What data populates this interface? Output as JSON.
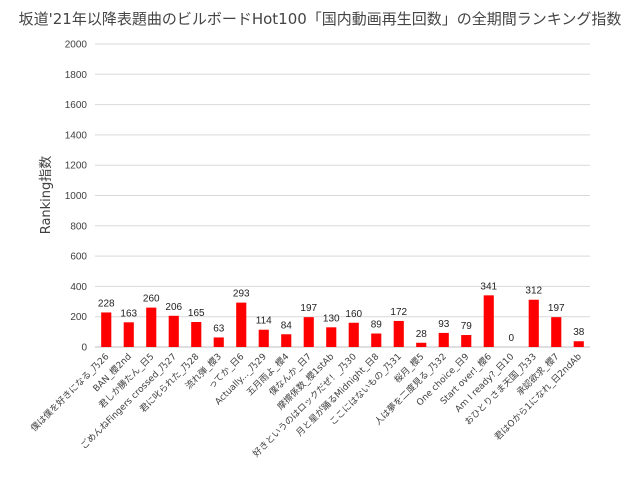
{
  "chart_data": {
    "type": "bar",
    "title": "坂道'21年以降表題曲のビルボードHot100「国内動画再生回数」の全期間ランキング指数",
    "ylabel": "Ranking指数",
    "xlabel": "",
    "ylim": [
      0,
      2000
    ],
    "yticks": [
      0,
      200,
      400,
      600,
      800,
      1000,
      1200,
      1400,
      1600,
      1800,
      2000
    ],
    "grid": true,
    "legend": "none",
    "bar_color": "#ff0000",
    "categories": [
      "僕は僕を好きになる_乃26",
      "BAN_櫻2nd",
      "君しか勝たん_日5",
      "ごめんねFingers crossed_乃27",
      "君に叱られた_乃28",
      "流れ弾_櫻3",
      "ってか_日6",
      "Actually..._乃29",
      "五月雨よ_櫻4",
      "僕なんか_日7",
      "摩擦係数_櫻1stAb",
      "好きというのはロックだぜ！_乃30",
      "月と星が踊るMidnight_日8",
      "ここにはないもの_乃31",
      "桜月_櫻5",
      "人は夢を二度見る_乃32",
      "One choice_日9",
      "Start over!_櫻6",
      "Am I ready?_日10",
      "おひとりさま天国_乃33",
      "承認欲求_櫻7",
      "君はOから1になれ_日2ndAb"
    ],
    "values": [
      228,
      163,
      260,
      206,
      165,
      63,
      293,
      114,
      84,
      197,
      130,
      160,
      89,
      172,
      28,
      93,
      79,
      341,
      0,
      312,
      197,
      38
    ]
  }
}
